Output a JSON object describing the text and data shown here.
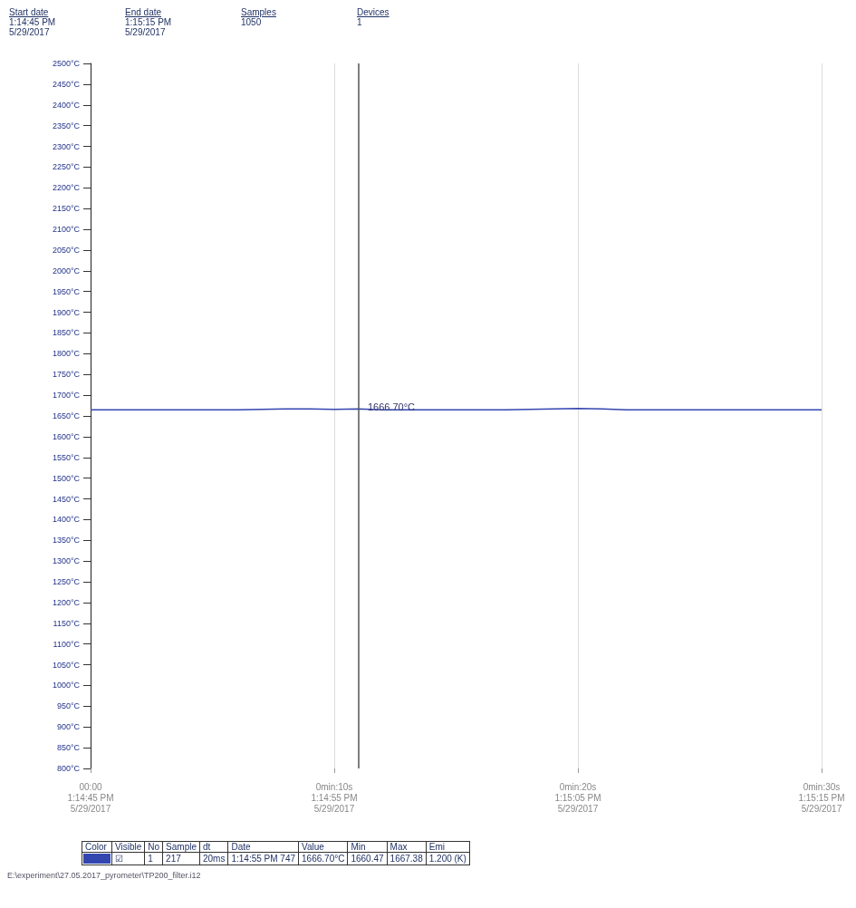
{
  "chart_data": {
    "type": "line",
    "categories": [
      "00:00\n1:14:45 PM\n5/29/2017",
      null,
      null,
      null,
      null,
      null,
      null,
      null,
      null,
      null,
      "0min:10s\n1:14:55 PM\n5/29/2017",
      null,
      null,
      null,
      null,
      null,
      null,
      null,
      null,
      null,
      "0min:20s\n1:15:05 PM\n5/29/2017",
      null,
      null,
      null,
      null,
      null,
      null,
      null,
      null,
      null,
      "0min:30s\n1:15:15 PM\n5/29/2017"
    ],
    "ylim": [
      800,
      2500
    ],
    "yticks": [
      {
        "value": 800,
        "label": "800°C"
      },
      {
        "value": 850,
        "label": "850°C"
      },
      {
        "value": 900,
        "label": "900°C"
      },
      {
        "value": 950,
        "label": "950°C"
      },
      {
        "value": 1000,
        "label": "1000°C"
      },
      {
        "value": 1050,
        "label": "1050°C"
      },
      {
        "value": 1100,
        "label": "1100°C"
      },
      {
        "value": 1150,
        "label": "1150°C"
      },
      {
        "value": 1200,
        "label": "1200°C"
      },
      {
        "value": 1250,
        "label": "1250°C"
      },
      {
        "value": 1300,
        "label": "1300°C"
      },
      {
        "value": 1350,
        "label": "1350°C"
      },
      {
        "value": 1400,
        "label": "1400°C"
      },
      {
        "value": 1450,
        "label": "1450°C"
      },
      {
        "value": 1500,
        "label": "1500°C"
      },
      {
        "value": 1550,
        "label": "1550°C"
      },
      {
        "value": 1600,
        "label": "1600°C"
      },
      {
        "value": 1650,
        "label": "1650°C"
      },
      {
        "value": 1700,
        "label": "1700°C"
      },
      {
        "value": 1750,
        "label": "1750°C"
      },
      {
        "value": 1800,
        "label": "1800°C"
      },
      {
        "value": 1850,
        "label": "1850°C"
      },
      {
        "value": 1900,
        "label": "1900°C"
      },
      {
        "value": 1950,
        "label": "1950°C"
      },
      {
        "value": 2000,
        "label": "2000°C"
      },
      {
        "value": 2050,
        "label": "2050°C"
      },
      {
        "value": 2100,
        "label": "2100°C"
      },
      {
        "value": 2150,
        "label": "2150°C"
      },
      {
        "value": 2200,
        "label": "2200°C"
      },
      {
        "value": 2250,
        "label": "2250°C"
      },
      {
        "value": 2300,
        "label": "2300°C"
      },
      {
        "value": 2350,
        "label": "2350°C"
      },
      {
        "value": 2400,
        "label": "2400°C"
      },
      {
        "value": 2450,
        "label": "2450°C"
      },
      {
        "value": 2500,
        "label": "2500°C"
      }
    ],
    "series": [
      {
        "color": "#3346b0",
        "values": [
          1665,
          1665,
          1665,
          1665,
          1665,
          1665,
          1665,
          1666,
          1667,
          1667,
          1666,
          1666.7,
          1665,
          1665,
          1665,
          1665,
          1665,
          1665,
          1666,
          1667,
          1668,
          1667,
          1665,
          1665,
          1665,
          1665,
          1665,
          1665,
          1665,
          1665,
          1665
        ]
      }
    ],
    "grid": "x",
    "marker": "none",
    "line_style": "solid",
    "annotations": [
      "Start date\n1:14:45 PM\n5/29/2017",
      "End date\n1:15:15 PM\n5/29/2017",
      "Samples\n1050",
      "Devices\n1",
      "Color\tVisible\tNo\tSample\tdt\tDate\tValue\tMin\tMax\tEmi",
      "\t☑\t1\t217\t20ms\t1:14:55 PM 747\t1666.70°C\t1660.47\t1667.38\t1.200 (K)",
      "E:\\experiment\\27.05.2017_pyrometer\\TP200_filter.i12",
      {
        "text": "1666.70°C",
        "y": 1666.7
      }
    ]
  }
}
